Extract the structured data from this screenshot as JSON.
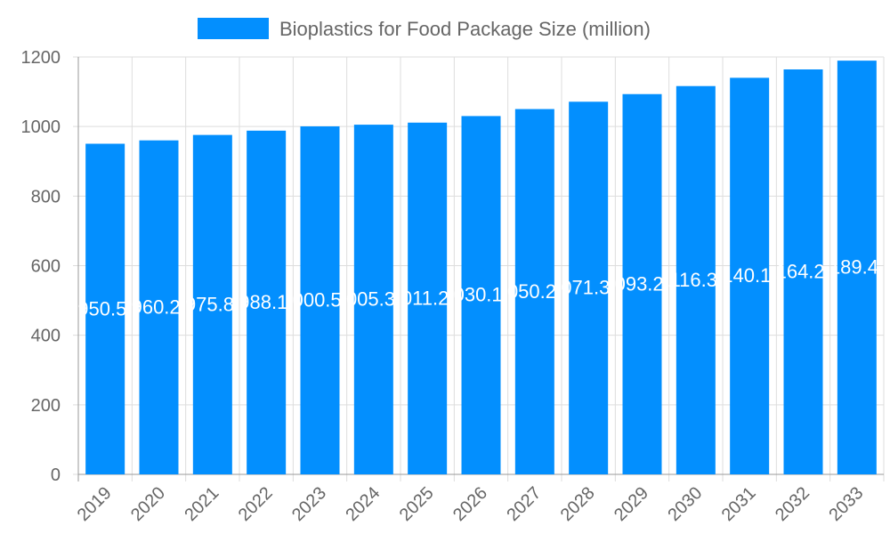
{
  "chart_data": {
    "type": "bar",
    "title": "",
    "xlabel": "",
    "ylabel": "",
    "categories": [
      "2019",
      "2020",
      "2021",
      "2022",
      "2023",
      "2024",
      "2025",
      "2026",
      "2027",
      "2028",
      "2029",
      "2030",
      "2031",
      "2032",
      "2033"
    ],
    "series": [
      {
        "name": "Bioplastics for Food Package Size (million)",
        "values": [
          950.5,
          960.2,
          975.8,
          988.1,
          1000.5,
          1005.3,
          1011.2,
          1030.1,
          1050.2,
          1071.3,
          1093.2,
          1116.3,
          1140.1,
          1164.2,
          1189.4
        ],
        "color": "#038ffe"
      }
    ],
    "ylim": [
      0,
      1200
    ],
    "yticks": [
      0,
      200,
      400,
      600,
      800,
      1000,
      1200
    ],
    "grid": true,
    "legend": "top-center",
    "data_labels": true
  }
}
